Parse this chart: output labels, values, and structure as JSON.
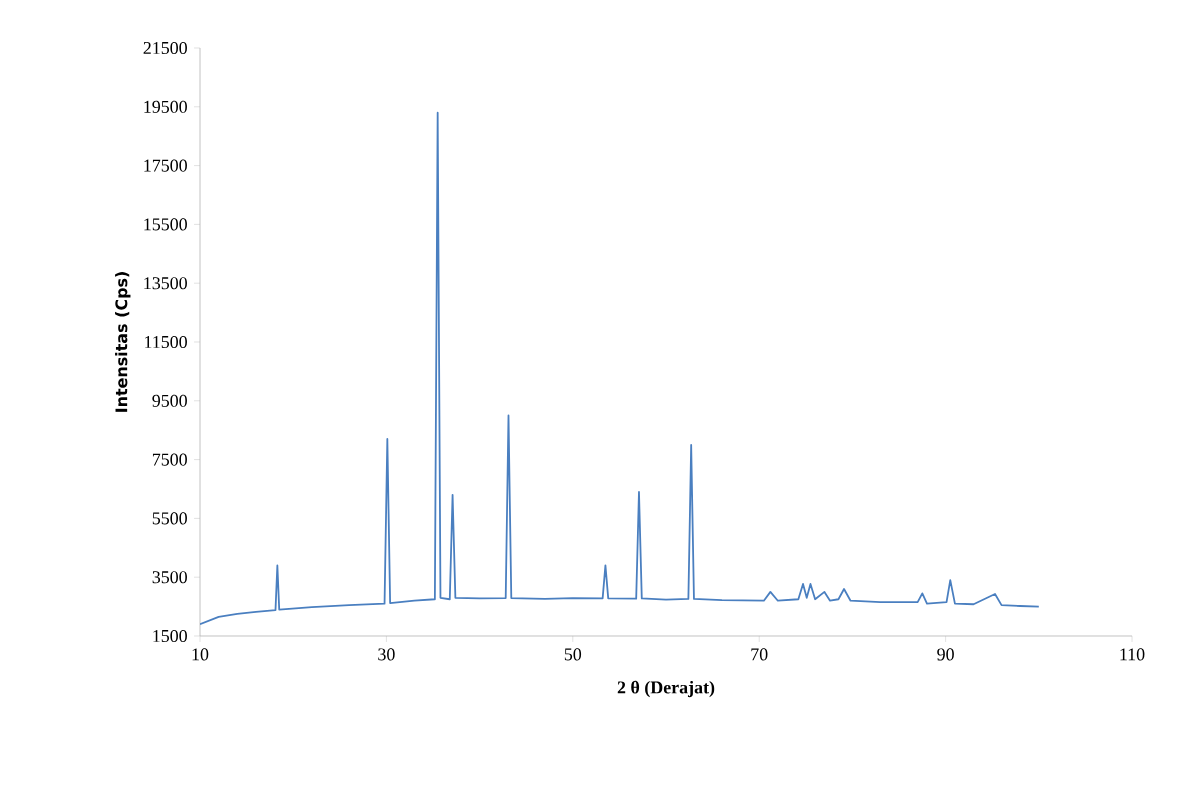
{
  "chart_data": {
    "type": "line",
    "xlabel": "2 θ (Derajat)",
    "ylabel": "Intensitas (Cps)",
    "xlim": [
      10,
      110
    ],
    "xticks": [
      10,
      30,
      50,
      70,
      90,
      110
    ],
    "ylim": [
      1500,
      21500
    ],
    "yticks": [
      1500,
      3500,
      5500,
      7500,
      9500,
      11500,
      13500,
      15500,
      17500,
      19500,
      21500
    ],
    "grid": false,
    "marker": "none",
    "line_style": "solid",
    "series": [
      {
        "color": "#4a7fc0",
        "x": [
          10,
          12,
          14,
          16,
          18.1,
          18.3,
          18.5,
          22,
          26,
          29.8,
          30.1,
          30.4,
          33,
          35.2,
          35.5,
          35.8,
          36.8,
          37.1,
          37.4,
          40,
          42.8,
          43.1,
          43.4,
          47,
          50,
          53.2,
          53.5,
          53.8,
          56.8,
          57.1,
          57.4,
          60,
          62.4,
          62.7,
          63,
          66,
          70.5,
          71.2,
          72,
          74.2,
          74.7,
          75.1,
          75.5,
          76,
          77,
          77.6,
          78.5,
          79.1,
          79.8,
          83,
          87,
          87.5,
          88,
          90.1,
          90.5,
          91,
          93,
          95.3,
          96,
          98,
          100
        ],
        "values": [
          1900,
          2150,
          2250,
          2320,
          2380,
          3900,
          2400,
          2480,
          2550,
          2600,
          8200,
          2620,
          2700,
          2750,
          19300,
          2800,
          2750,
          6300,
          2800,
          2780,
          2790,
          9000,
          2790,
          2760,
          2790,
          2780,
          3900,
          2780,
          2770,
          6400,
          2780,
          2740,
          2760,
          8000,
          2760,
          2720,
          2700,
          3000,
          2700,
          2750,
          3270,
          2800,
          3270,
          2750,
          3000,
          2700,
          2750,
          3100,
          2700,
          2650,
          2650,
          2950,
          2600,
          2650,
          3400,
          2600,
          2580,
          2930,
          2550,
          2520,
          2500
        ]
      }
    ]
  }
}
